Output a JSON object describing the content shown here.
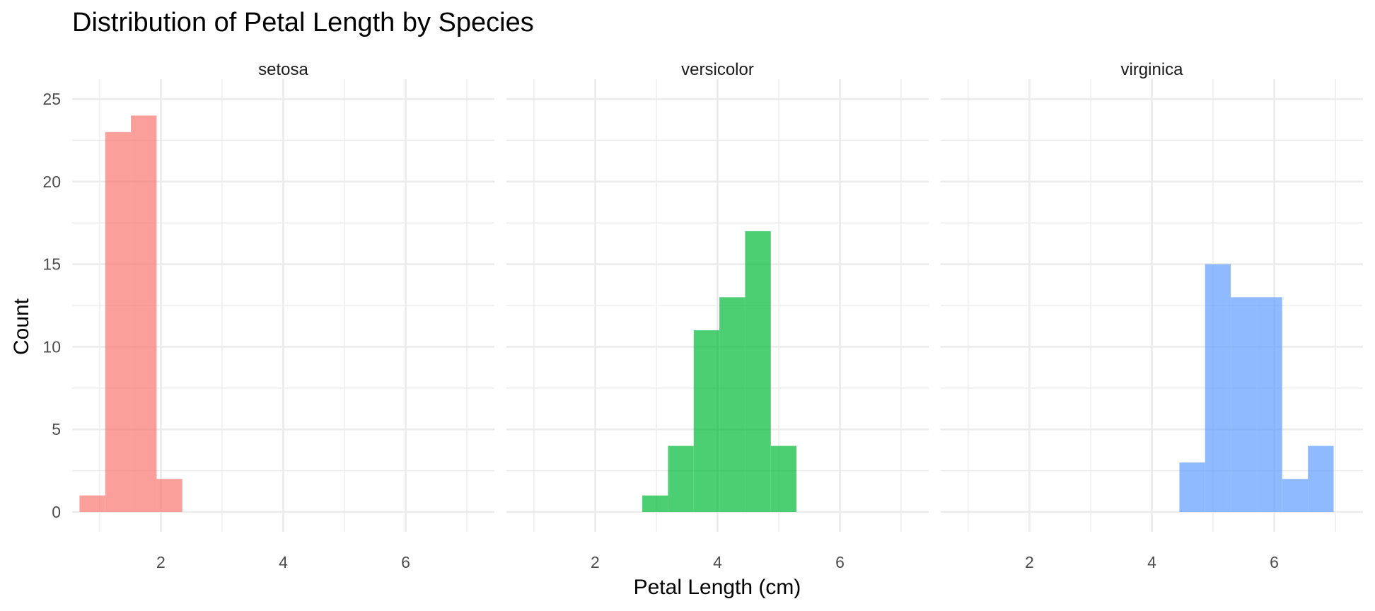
{
  "chart_data": {
    "type": "bar",
    "title": "Distribution of Petal Length by Species",
    "xlabel": "Petal Length (cm)",
    "ylabel": "Count",
    "xlim": [
      0.55,
      7.45
    ],
    "ylim": [
      -1.2,
      26.2
    ],
    "x_ticks": [
      2,
      4,
      6
    ],
    "y_ticks": [
      0,
      5,
      10,
      15,
      20,
      25
    ],
    "grid": true,
    "legend": "none",
    "bin_width": 0.42,
    "panels": [
      {
        "name": "setosa",
        "color": "#F8766D",
        "bins": [
          {
            "x0": 0.67,
            "x1": 1.09,
            "count": 1
          },
          {
            "x0": 1.09,
            "x1": 1.51,
            "count": 23
          },
          {
            "x0": 1.51,
            "x1": 1.93,
            "count": 24
          },
          {
            "x0": 1.93,
            "x1": 2.35,
            "count": 2
          }
        ]
      },
      {
        "name": "versicolor",
        "color": "#00BA38",
        "bins": [
          {
            "x0": 2.77,
            "x1": 3.19,
            "count": 1
          },
          {
            "x0": 3.19,
            "x1": 3.61,
            "count": 4
          },
          {
            "x0": 3.61,
            "x1": 4.03,
            "count": 11
          },
          {
            "x0": 4.03,
            "x1": 4.45,
            "count": 13
          },
          {
            "x0": 4.45,
            "x1": 4.87,
            "count": 17
          },
          {
            "x0": 4.87,
            "x1": 5.29,
            "count": 4
          }
        ]
      },
      {
        "name": "virginica",
        "color": "#619CFF",
        "bins": [
          {
            "x0": 4.45,
            "x1": 4.87,
            "count": 3
          },
          {
            "x0": 4.87,
            "x1": 5.29,
            "count": 15
          },
          {
            "x0": 5.29,
            "x1": 5.71,
            "count": 13
          },
          {
            "x0": 5.71,
            "x1": 6.13,
            "count": 13
          },
          {
            "x0": 6.13,
            "x1": 6.55,
            "count": 2
          },
          {
            "x0": 6.55,
            "x1": 6.97,
            "count": 4
          }
        ]
      }
    ]
  }
}
